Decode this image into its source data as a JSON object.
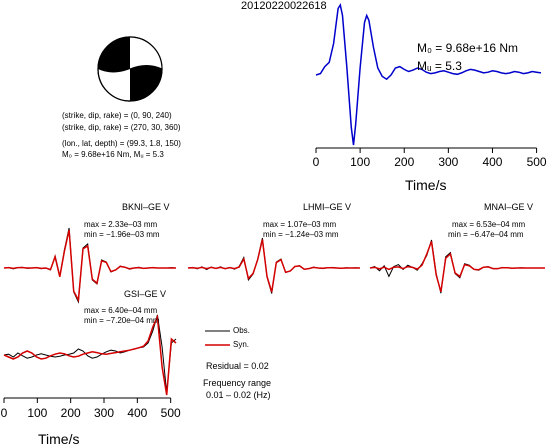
{
  "title": "20120220022618",
  "colors": {
    "observed": "#000000",
    "synthetic": "#d40000",
    "stf": "#0000cc",
    "beachball_fill": "#000000"
  },
  "mechanism": {
    "line1": "(strike, dip, rake) = (0, 90, 240)",
    "line2": "(strike, dip, rake) = (270, 30, 360)",
    "line3": "(lon., lat, depth) = (99.3, 1.8, 150)",
    "line4": "M₀ = 9.68e+16 Nm, Mᵤ = 5.3"
  },
  "stf_panel": {
    "m0_label": "M₀ = 9.68e+16 Nm",
    "mw_label": "Mᵤ = 5.3",
    "xlabel": "Time/s"
  },
  "legend": {
    "obs": "Obs.",
    "syn": "Syn.",
    "residual": "Residual = 0.02",
    "freq_title": "Frequency range",
    "freq_value": "0.01 – 0.02 (Hz)"
  },
  "chart_data": [
    {
      "type": "line",
      "name": "source-time-function",
      "xlim": [
        0,
        510
      ],
      "xticks": [
        0,
        100,
        200,
        300,
        400,
        500
      ],
      "xlabel": "Time/s",
      "series": [
        {
          "name": "stf",
          "x": [
            0,
            10,
            20,
            30,
            40,
            50,
            55,
            60,
            70,
            80,
            85,
            90,
            100,
            110,
            115,
            120,
            130,
            140,
            150,
            160,
            170,
            180,
            190,
            200,
            210,
            220,
            230,
            240,
            250,
            260,
            270,
            280,
            290,
            300,
            310,
            320,
            330,
            340,
            350,
            360,
            370,
            380,
            390,
            400,
            410,
            420,
            430,
            440,
            450,
            460,
            470,
            480,
            490,
            500,
            510
          ],
          "y": [
            0.0,
            0.02,
            0.12,
            0.18,
            0.45,
            0.95,
            1.0,
            0.85,
            0.1,
            -0.75,
            -1.0,
            -0.7,
            0.1,
            0.75,
            0.85,
            0.78,
            0.4,
            0.1,
            -0.02,
            -0.06,
            0.0,
            0.1,
            0.12,
            0.08,
            0.05,
            0.07,
            0.1,
            0.08,
            0.04,
            0.02,
            0.03,
            0.05,
            0.06,
            0.04,
            0.02,
            0.01,
            0.03,
            0.06,
            0.08,
            0.07,
            0.05,
            0.03,
            0.04,
            0.06,
            0.05,
            0.03,
            0.02,
            0.03,
            0.05,
            0.04,
            0.02,
            0.03,
            0.05,
            0.04,
            0.03
          ]
        }
      ]
    },
    {
      "type": "line",
      "name": "station-waveforms",
      "xlim": [
        0,
        510
      ],
      "xticks": [
        0,
        100,
        200,
        300,
        400,
        500
      ],
      "xlabel": "Time/s",
      "stations": [
        {
          "label": "BKNI–GE V",
          "max": "max = 2.33e–03 mm",
          "min": "min = −1.96e–03 mm",
          "obs": [
            0,
            0.01,
            -0.02,
            0.01,
            0.02,
            -0.01,
            0.0,
            0.01,
            -0.02,
            0.0,
            -0.05,
            0.3,
            -0.2,
            0.45,
            1.0,
            -0.6,
            -0.85,
            0.5,
            0.6,
            -0.3,
            -0.4,
            0.2,
            0.15,
            -0.1,
            -0.05,
            0.05,
            0.02,
            -0.03,
            0.0,
            0.02,
            -0.01,
            0.0,
            0.01,
            0.0,
            0.0,
            0.0,
            0.01,
            0.0
          ],
          "syn": [
            0,
            0.01,
            -0.01,
            0.01,
            0.01,
            0.0,
            0.0,
            0.01,
            -0.01,
            0.0,
            -0.04,
            0.28,
            -0.22,
            0.42,
            0.95,
            -0.58,
            -0.8,
            0.48,
            0.55,
            -0.28,
            -0.38,
            0.18,
            0.14,
            -0.09,
            -0.05,
            0.04,
            0.02,
            -0.02,
            0.0,
            0.01,
            -0.01,
            0.0,
            0.01,
            0.0,
            0.0,
            0.0,
            0.0,
            0.0
          ]
        },
        {
          "label": "LHMI–GE V",
          "max": "max = 1.07e–03 mm",
          "min": "min = −1.24e–03 mm",
          "obs": [
            0,
            0.02,
            -0.03,
            0.04,
            -0.05,
            0.03,
            -0.02,
            0.04,
            -0.03,
            0.02,
            -0.04,
            0.05,
            0.35,
            -0.4,
            -0.2,
            0.3,
            1.0,
            -0.3,
            -0.85,
            0.2,
            0.3,
            -0.15,
            -0.1,
            0.05,
            0.08,
            -0.04,
            -0.02,
            0.03,
            0.0,
            -0.02,
            0.01,
            0.02,
            0.0,
            -0.01,
            0.01,
            0.0,
            0.01,
            0.0
          ],
          "syn": [
            0,
            0.01,
            -0.01,
            0.02,
            -0.02,
            0.02,
            -0.01,
            0.02,
            -0.02,
            0.01,
            -0.02,
            0.03,
            0.3,
            -0.35,
            -0.18,
            0.28,
            0.95,
            -0.28,
            -0.8,
            0.18,
            0.28,
            -0.14,
            -0.1,
            0.05,
            0.07,
            -0.04,
            -0.02,
            0.02,
            0.0,
            -0.01,
            0.01,
            0.01,
            0.0,
            -0.01,
            0.0,
            0.0,
            0.0,
            0.0
          ]
        },
        {
          "label": "MNAI–GE V",
          "max": "max = 6.53e–04 mm",
          "min": "min = −6.47e–04 mm",
          "obs": [
            0,
            0.05,
            -0.1,
            0.08,
            -0.3,
            0.05,
            0.12,
            -0.05,
            0.1,
            0.02,
            -0.08,
            0.15,
            0.45,
            1.0,
            -0.2,
            -0.9,
            0.4,
            0.55,
            -0.2,
            -0.35,
            0.15,
            0.1,
            -0.05,
            -0.08,
            0.03,
            0.05,
            -0.02,
            -0.03,
            0.02,
            0.01,
            -0.01,
            0.0,
            0.01,
            0.0,
            0.0,
            0.0,
            0.0,
            0.0
          ],
          "syn": [
            0,
            0.02,
            -0.03,
            0.03,
            -0.05,
            0.03,
            0.04,
            -0.02,
            0.05,
            0.02,
            -0.04,
            0.1,
            0.5,
            0.95,
            -0.25,
            -0.85,
            0.35,
            0.5,
            -0.18,
            -0.3,
            0.12,
            0.08,
            -0.05,
            -0.06,
            0.03,
            0.04,
            -0.02,
            -0.02,
            0.01,
            0.01,
            -0.01,
            0.0,
            0.0,
            0.0,
            0.0,
            0.0,
            0.0,
            0.0
          ]
        },
        {
          "label": "GSI–GE V",
          "max": "max = 6.40e–04 mm",
          "min": "min = −7.20e–04 mm",
          "obs": [
            0.0,
            0.02,
            -0.05,
            0.05,
            -0.02,
            -0.08,
            -0.05,
            0.0,
            0.03,
            0.0,
            -0.03,
            -0.05,
            -0.03,
            0.0,
            0.02,
            0.05,
            0.15,
            0.1,
            -0.02,
            -0.08,
            -0.05,
            0.02,
            0.08,
            0.12,
            0.1,
            0.05,
            0.08,
            0.12,
            0.15,
            0.18,
            0.2,
            0.3,
            0.6,
            1.0,
            0.2,
            -0.95,
            0.3,
            0.4
          ],
          "syn": [
            0.0,
            -0.05,
            -0.1,
            -0.05,
            0.05,
            0.1,
            0.05,
            -0.05,
            -0.1,
            -0.08,
            -0.02,
            0.02,
            0.05,
            0.03,
            -0.02,
            -0.05,
            -0.03,
            0.02,
            0.05,
            0.08,
            0.06,
            0.03,
            0.02,
            0.04,
            0.06,
            0.08,
            0.1,
            0.12,
            0.15,
            0.18,
            0.22,
            0.35,
            0.7,
            0.95,
            -0.3,
            -1.0,
            0.4,
            0.3
          ]
        }
      ]
    }
  ]
}
